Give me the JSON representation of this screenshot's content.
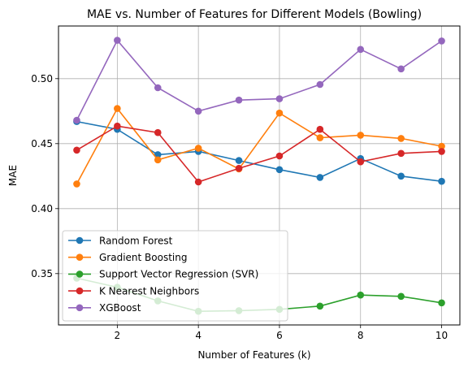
{
  "chart_data": {
    "type": "line",
    "title": "MAE vs. Number of Features for Different Models (Bowling)",
    "xlabel": "Number of Features (k)",
    "ylabel": "MAE",
    "x": [
      1,
      2,
      3,
      4,
      5,
      6,
      7,
      8,
      9,
      10
    ],
    "xlim": [
      0.55,
      10.45
    ],
    "ylim": [
      0.3105,
      0.5405
    ],
    "xticks": [
      2,
      4,
      6,
      8,
      10
    ],
    "yticks": [
      0.35,
      0.4,
      0.45,
      0.5
    ],
    "xtick_labels": [
      "2",
      "4",
      "6",
      "8",
      "10"
    ],
    "ytick_labels": [
      "0.35",
      "0.40",
      "0.45",
      "0.50"
    ],
    "grid": true,
    "legend_position": "lower-left",
    "series": [
      {
        "name": "Random Forest",
        "color": "#1f77b4",
        "values": [
          0.467,
          0.461,
          0.4415,
          0.444,
          0.437,
          0.43,
          0.424,
          0.4385,
          0.425,
          0.421
        ]
      },
      {
        "name": "Gradient Boosting",
        "color": "#ff7f0e",
        "values": [
          0.419,
          0.477,
          0.4375,
          0.4465,
          0.4305,
          0.4735,
          0.4545,
          0.4565,
          0.454,
          0.448
        ]
      },
      {
        "name": "Support Vector Regression (SVR)",
        "color": "#2ca02c",
        "values": [
          0.3465,
          0.3395,
          0.329,
          0.321,
          0.3215,
          0.3225,
          0.325,
          0.3335,
          0.3325,
          0.3275
        ]
      },
      {
        "name": "K Nearest Neighbors",
        "color": "#d62728",
        "values": [
          0.445,
          0.4635,
          0.4585,
          0.4205,
          0.431,
          0.4405,
          0.461,
          0.436,
          0.4425,
          0.444
        ]
      },
      {
        "name": "XGBoost",
        "color": "#9467bd",
        "values": [
          0.468,
          0.5295,
          0.493,
          0.475,
          0.4835,
          0.4845,
          0.4955,
          0.5225,
          0.5075,
          0.529
        ]
      }
    ]
  }
}
